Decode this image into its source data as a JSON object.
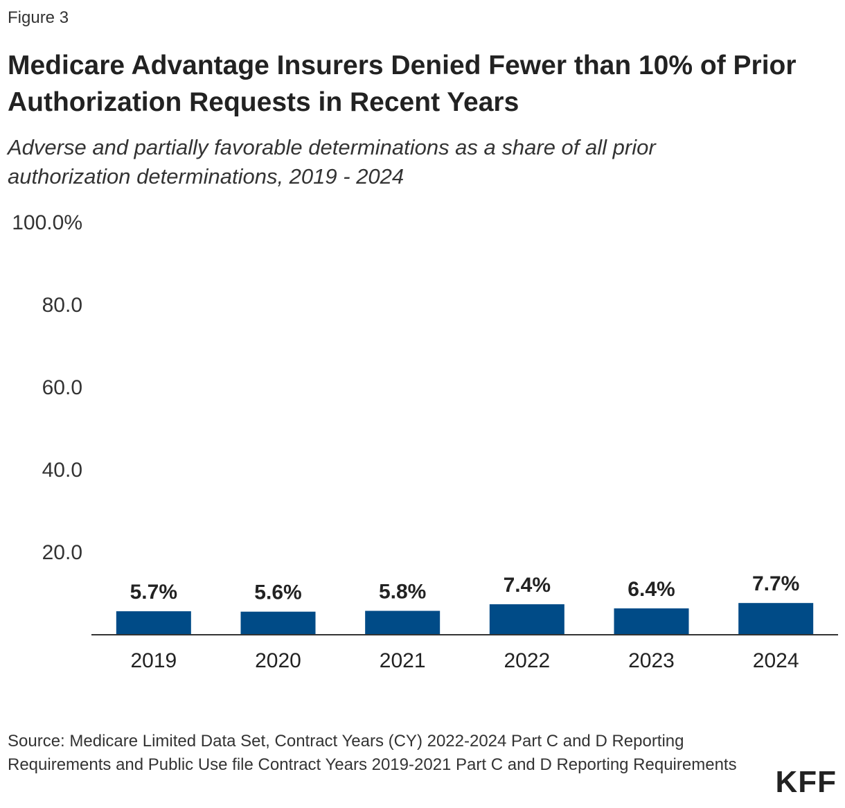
{
  "figure_label": "Figure 3",
  "source": "Source: Medicare Limited Data Set, Contract Years (CY) 2022-2024 Part C and D Reporting Requirements and Public Use file Contract Years 2019-2021 Part C and D Reporting Requirements",
  "logo": "KFF",
  "chart_data": {
    "type": "bar",
    "title": "Medicare Advantage Insurers Denied Fewer than 10% of Prior Authorization Requests in Recent Years",
    "subtitle": "Adverse and partially favorable determinations as a share of all prior authorization determinations, 2019 - 2024",
    "categories": [
      "2019",
      "2020",
      "2021",
      "2022",
      "2023",
      "2024"
    ],
    "values": [
      5.7,
      5.6,
      5.8,
      7.4,
      6.4,
      7.7
    ],
    "data_labels": [
      "5.7%",
      "5.6%",
      "5.8%",
      "7.4%",
      "6.4%",
      "7.7%"
    ],
    "yticks": [
      20,
      40,
      60,
      80,
      100
    ],
    "ytick_labels": [
      "20.0",
      "40.0",
      "60.0",
      "80.0",
      "100.0%"
    ],
    "ylim": [
      0,
      100
    ],
    "xlabel": "",
    "ylabel": "",
    "grid": false,
    "bar_color": "#004b87"
  }
}
